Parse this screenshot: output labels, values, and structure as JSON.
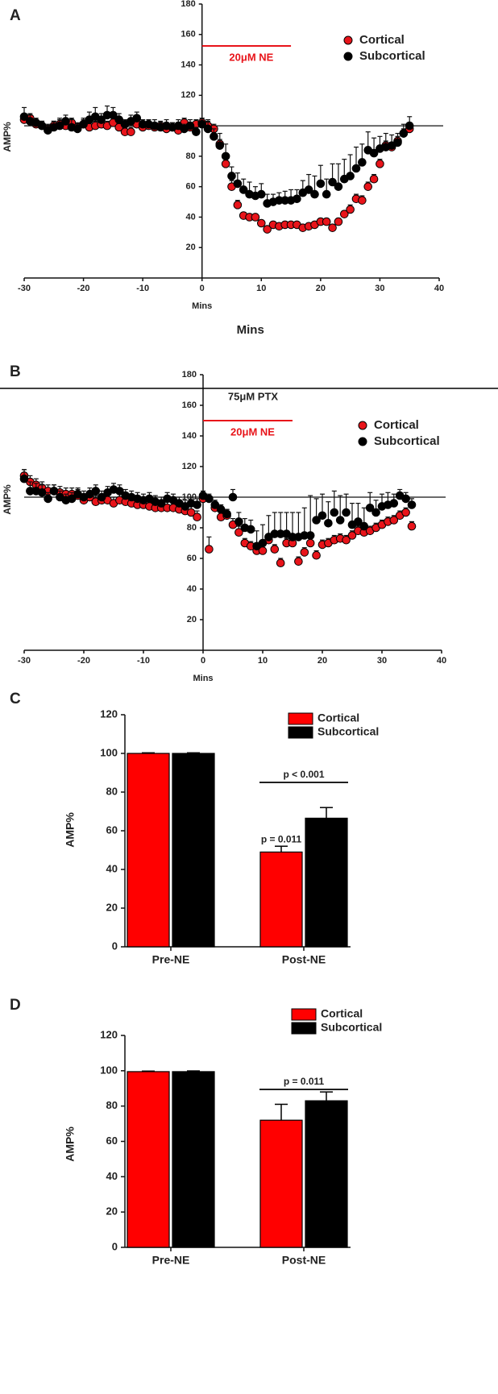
{
  "chart_data": [
    {
      "type": "scatter",
      "panel": "A",
      "xlabel": "Mins",
      "ylabel": "AMP%",
      "caption": "Mins",
      "refline": 100,
      "stim": {
        "label": "20μM NE",
        "start": 0,
        "end": 15,
        "color": "#e8141a"
      },
      "xlim": [
        -30,
        40
      ],
      "xticks": [
        -30,
        -20,
        -10,
        0,
        10,
        20,
        30,
        40
      ],
      "ylim": [
        0,
        180
      ],
      "yticks": [
        20,
        40,
        60,
        80,
        100,
        120,
        140,
        160,
        180
      ],
      "x": [
        -30,
        -29,
        -28,
        -27,
        -26,
        -25,
        -24,
        -23,
        -22,
        -21,
        -20,
        -19,
        -18,
        -17,
        -16,
        -15,
        -14,
        -13,
        -12,
        -11,
        -10,
        -9,
        -8,
        -7,
        -6,
        -5,
        -4,
        -3,
        -2,
        -1,
        0,
        1,
        2,
        3,
        4,
        5,
        6,
        7,
        8,
        9,
        10,
        11,
        12,
        13,
        14,
        15,
        16,
        17,
        18,
        19,
        20,
        21,
        22,
        23,
        24,
        25,
        26,
        27,
        28,
        29,
        30,
        31,
        32,
        33,
        34,
        35
      ],
      "series": [
        {
          "name": "Cortical",
          "color": "#e8141a",
          "values": [
            104,
            105,
            101,
            100,
            98,
            100,
            101,
            100,
            102,
            99,
            101,
            99,
            100,
            101,
            100,
            102,
            99,
            96,
            96,
            101,
            99,
            100,
            99,
            100,
            98,
            99,
            97,
            102,
            99,
            101,
            102,
            100,
            98,
            88,
            75,
            60,
            48,
            41,
            40,
            40,
            36,
            32,
            35,
            34,
            35,
            35,
            35,
            33,
            34,
            35,
            37,
            37,
            33,
            37,
            42,
            45,
            52,
            51,
            60,
            65,
            75,
            87,
            86,
            90,
            95,
            98
          ],
          "errors": [
            3,
            3,
            3,
            3,
            3,
            3,
            3,
            3,
            3,
            3,
            3,
            3,
            3,
            3,
            3,
            3,
            3,
            3,
            3,
            3,
            3,
            3,
            3,
            3,
            3,
            3,
            3,
            3,
            3,
            3,
            3,
            3,
            3,
            3,
            3,
            4,
            3,
            2,
            2,
            2,
            2,
            2,
            2,
            2,
            2,
            2,
            2,
            2,
            2,
            2,
            2,
            2,
            2,
            2,
            2,
            3,
            3,
            3,
            3,
            3,
            3,
            3,
            3,
            3,
            3,
            3
          ]
        },
        {
          "name": "Subcortical",
          "color": "#000000",
          "values": [
            106,
            103,
            102,
            100,
            97,
            99,
            100,
            103,
            99,
            98,
            101,
            104,
            106,
            104,
            107,
            107,
            104,
            101,
            103,
            105,
            101,
            101,
            100,
            99,
            100,
            99,
            100,
            98,
            100,
            96,
            101,
            98,
            93,
            87,
            80,
            67,
            62,
            58,
            55,
            54,
            55,
            49,
            50,
            51,
            51,
            51,
            52,
            56,
            58,
            55,
            62,
            55,
            63,
            60,
            65,
            67,
            72,
            76,
            84,
            82,
            85,
            86,
            87,
            89,
            95,
            100
          ],
          "errors": [
            6,
            4,
            3,
            3,
            3,
            4,
            5,
            4,
            5,
            3,
            4,
            5,
            6,
            4,
            6,
            5,
            4,
            3,
            4,
            4,
            3,
            3,
            4,
            3,
            4,
            3,
            4,
            3,
            4,
            3,
            4,
            6,
            5,
            8,
            8,
            6,
            7,
            7,
            8,
            6,
            7,
            6,
            5,
            5,
            6,
            7,
            6,
            8,
            10,
            12,
            12,
            10,
            12,
            15,
            13,
            14,
            14,
            12,
            12,
            10,
            8,
            9,
            7,
            6,
            6,
            6
          ]
        }
      ]
    },
    {
      "type": "scatter",
      "panel": "B",
      "xlabel": "Mins",
      "ylabel": "AMP%",
      "refline": 100,
      "drug": {
        "label": "75μM PTX",
        "color": "#000000"
      },
      "stim": {
        "label": "20μM NE",
        "start": 0,
        "end": 15,
        "color": "#e8141a"
      },
      "xlim": [
        -30,
        40
      ],
      "xticks": [
        -30,
        -20,
        -10,
        0,
        10,
        20,
        30,
        40
      ],
      "ylim": [
        0,
        180
      ],
      "yticks": [
        20,
        40,
        60,
        80,
        100,
        120,
        140,
        160,
        180
      ],
      "x": [
        -30,
        -29,
        -28,
        -27,
        -26,
        -25,
        -24,
        -23,
        -22,
        -21,
        -20,
        -19,
        -18,
        -17,
        -16,
        -15,
        -14,
        -13,
        -12,
        -11,
        -10,
        -9,
        -8,
        -7,
        -6,
        -5,
        -4,
        -3,
        -2,
        -1,
        0,
        1,
        2,
        3,
        4,
        5,
        6,
        7,
        8,
        9,
        10,
        11,
        12,
        13,
        14,
        15,
        16,
        17,
        18,
        19,
        20,
        21,
        22,
        23,
        24,
        25,
        26,
        27,
        28,
        29,
        30,
        31,
        32,
        33,
        34,
        35
      ],
      "series": [
        {
          "name": "Cortical",
          "color": "#e8141a",
          "values": [
            114,
            110,
            108,
            106,
            104,
            104,
            103,
            102,
            102,
            101,
            98,
            100,
            97,
            98,
            98,
            96,
            98,
            97,
            96,
            95,
            95,
            94,
            93,
            93,
            93,
            93,
            92,
            91,
            90,
            87,
            99,
            66,
            93,
            87,
            88,
            82,
            77,
            70,
            68,
            65,
            65,
            72,
            66,
            57,
            70,
            70,
            58,
            64,
            70,
            62,
            69,
            70,
            72,
            73,
            72,
            75,
            78,
            77,
            78,
            80,
            82,
            84,
            85,
            88,
            90,
            81
          ],
          "errors": [
            4,
            4,
            4,
            4,
            4,
            4,
            4,
            4,
            4,
            4,
            4,
            4,
            4,
            4,
            4,
            4,
            4,
            4,
            4,
            4,
            4,
            4,
            4,
            4,
            4,
            4,
            4,
            4,
            4,
            4,
            3,
            8,
            3,
            3,
            4,
            4,
            4,
            3,
            3,
            3,
            3,
            3,
            3,
            3,
            3,
            3,
            3,
            3,
            3,
            3,
            3,
            3,
            3,
            3,
            3,
            3,
            3,
            3,
            3,
            3,
            3,
            3,
            3,
            3,
            3,
            3
          ]
        },
        {
          "name": "Subcortical",
          "color": "#000000",
          "values": [
            112,
            104,
            104,
            103,
            99,
            104,
            100,
            98,
            99,
            102,
            100,
            102,
            104,
            100,
            103,
            105,
            104,
            101,
            100,
            99,
            98,
            99,
            97,
            96,
            99,
            98,
            96,
            94,
            96,
            95,
            101,
            99,
            95,
            92,
            89,
            100,
            84,
            80,
            79,
            68,
            70,
            74,
            76,
            76,
            76,
            74,
            74,
            75,
            75,
            85,
            88,
            83,
            90,
            85,
            90,
            82,
            84,
            81,
            93,
            90,
            94,
            95,
            96,
            101,
            99,
            95
          ],
          "errors": [
            6,
            6,
            5,
            5,
            4,
            4,
            4,
            4,
            4,
            4,
            4,
            4,
            4,
            4,
            4,
            4,
            4,
            4,
            4,
            4,
            4,
            4,
            4,
            4,
            4,
            4,
            4,
            4,
            4,
            4,
            3,
            3,
            3,
            3,
            3,
            5,
            6,
            6,
            6,
            10,
            12,
            14,
            14,
            14,
            14,
            16,
            16,
            18,
            26,
            14,
            14,
            14,
            14,
            16,
            12,
            14,
            12,
            12,
            10,
            8,
            8,
            8,
            6,
            4,
            4,
            4
          ]
        }
      ]
    },
    {
      "type": "bar",
      "panel": "C",
      "ylabel": "AMP%",
      "bracket": "p < 0.001",
      "bar_note": "p = 0.011",
      "categories": [
        "Pre-NE",
        "Post-NE"
      ],
      "ylim": [
        0,
        120
      ],
      "yticks": [
        0,
        20,
        40,
        60,
        80,
        100,
        120
      ],
      "series": [
        {
          "name": "Cortical",
          "color": "#ff0000",
          "values": [
            100,
            49
          ],
          "errors": [
            0.3,
            3
          ]
        },
        {
          "name": "Subcortical",
          "color": "#000000",
          "values": [
            100,
            66.5
          ],
          "errors": [
            0.3,
            5.5
          ]
        }
      ]
    },
    {
      "type": "bar",
      "panel": "D",
      "ylabel": "AMP%",
      "bracket": "p = 0.011",
      "categories": [
        "Pre-NE",
        "Post-NE"
      ],
      "ylim": [
        0,
        120
      ],
      "yticks": [
        0,
        20,
        40,
        60,
        80,
        100,
        120
      ],
      "series": [
        {
          "name": "Cortical",
          "color": "#ff0000",
          "values": [
            99.5,
            72
          ],
          "errors": [
            0.3,
            9
          ]
        },
        {
          "name": "Subcortical",
          "color": "#000000",
          "values": [
            99.5,
            83
          ],
          "errors": [
            0.4,
            5
          ]
        }
      ]
    }
  ]
}
